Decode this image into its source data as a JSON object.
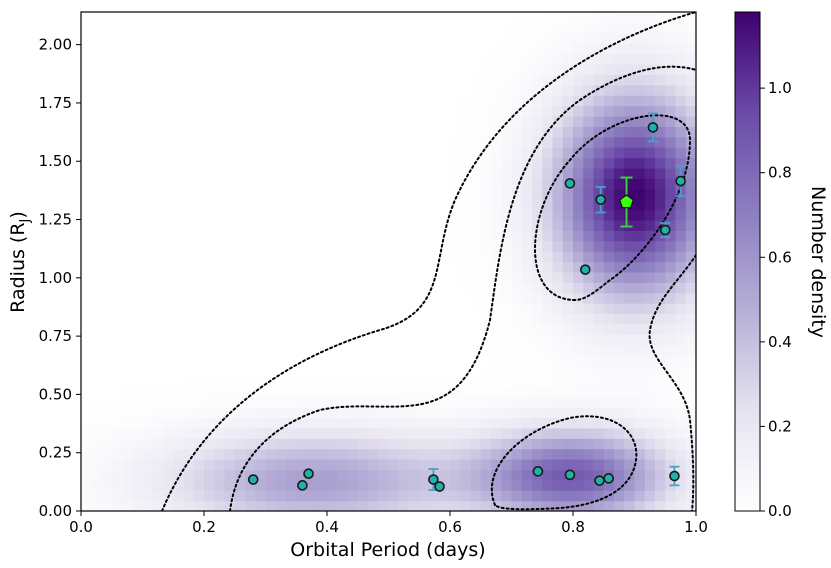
{
  "chart_data": {
    "type": "scatter",
    "xlabel": "Orbital Period (days)",
    "ylabel_main": "Radius (R",
    "ylabel_sub": "J",
    "ylabel_close": ")",
    "xlim": [
      0.0,
      1.0
    ],
    "ylim": [
      0.0,
      2.14
    ],
    "xticks": [
      "0.0",
      "0.2",
      "0.4",
      "0.6",
      "0.8",
      "1.0"
    ],
    "yticks": [
      "0.00",
      "0.25",
      "0.50",
      "0.75",
      "1.00",
      "1.25",
      "1.50",
      "1.75",
      "2.00"
    ],
    "colorbar": {
      "label": "Number density",
      "range": [
        0.0,
        1.18
      ],
      "ticks": [
        "0.0",
        "0.2",
        "0.4",
        "0.6",
        "0.8",
        "1.0"
      ]
    },
    "density_peaks": [
      {
        "x": 0.9,
        "y": 1.35,
        "sx": 0.09,
        "sy": 0.3,
        "amp": 1.18
      },
      {
        "x": 0.8,
        "y": 0.15,
        "sx": 0.11,
        "sy": 0.14,
        "amp": 0.85
      },
      {
        "x": 0.38,
        "y": 0.13,
        "sx": 0.17,
        "sy": 0.15,
        "amp": 0.55
      }
    ],
    "planets": [
      {
        "x": 0.28,
        "y": 0.135
      },
      {
        "x": 0.36,
        "y": 0.11
      },
      {
        "x": 0.37,
        "y": 0.16
      },
      {
        "x": 0.573,
        "y": 0.135,
        "err": 0.045
      },
      {
        "x": 0.583,
        "y": 0.105
      },
      {
        "x": 0.743,
        "y": 0.17
      },
      {
        "x": 0.795,
        "y": 0.155
      },
      {
        "x": 0.843,
        "y": 0.13
      },
      {
        "x": 0.858,
        "y": 0.14
      },
      {
        "x": 0.965,
        "y": 0.15,
        "err": 0.04
      },
      {
        "x": 0.795,
        "y": 1.405
      },
      {
        "x": 0.845,
        "y": 1.335,
        "err": 0.055
      },
      {
        "x": 0.82,
        "y": 1.035
      },
      {
        "x": 0.93,
        "y": 1.645,
        "err": 0.06
      },
      {
        "x": 0.95,
        "y": 1.205,
        "err": 0.03
      },
      {
        "x": 0.975,
        "y": 1.415,
        "err": 0.065
      }
    ],
    "highlight": {
      "x": 0.887,
      "y": 1.325,
      "err": 0.105
    },
    "colors": {
      "planet_fill": "#20b2aa",
      "planet_edge": "#1a1a1a",
      "errorbar": "#4aa0c8",
      "highlight_fill": "#39ff14",
      "highlight_errorbar": "#3ccf3c",
      "contour": "#000000",
      "cmap_low": "#ffffff",
      "cmap_high": "#3f0070"
    }
  }
}
